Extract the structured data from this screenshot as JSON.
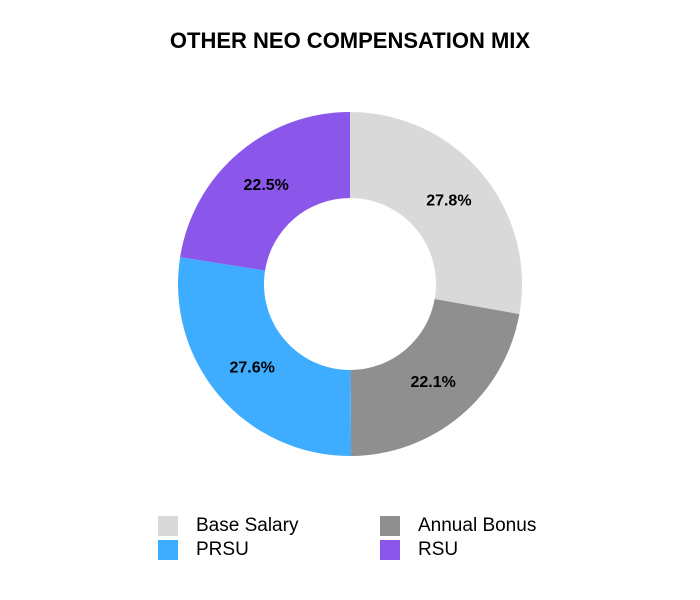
{
  "chart_data": {
    "type": "donut",
    "title": "OTHER NEO COMPENSATION MIX",
    "categories": [
      "Base Salary",
      "Annual Bonus",
      "PRSU",
      "RSU"
    ],
    "values": [
      27.8,
      22.1,
      27.6,
      22.5
    ],
    "value_labels": [
      "27.8%",
      "22.1%",
      "27.6%",
      "22.5%"
    ],
    "colors": [
      "#d9d9d9",
      "#8f8f8f",
      "#3fadff",
      "#8b57eb"
    ]
  }
}
